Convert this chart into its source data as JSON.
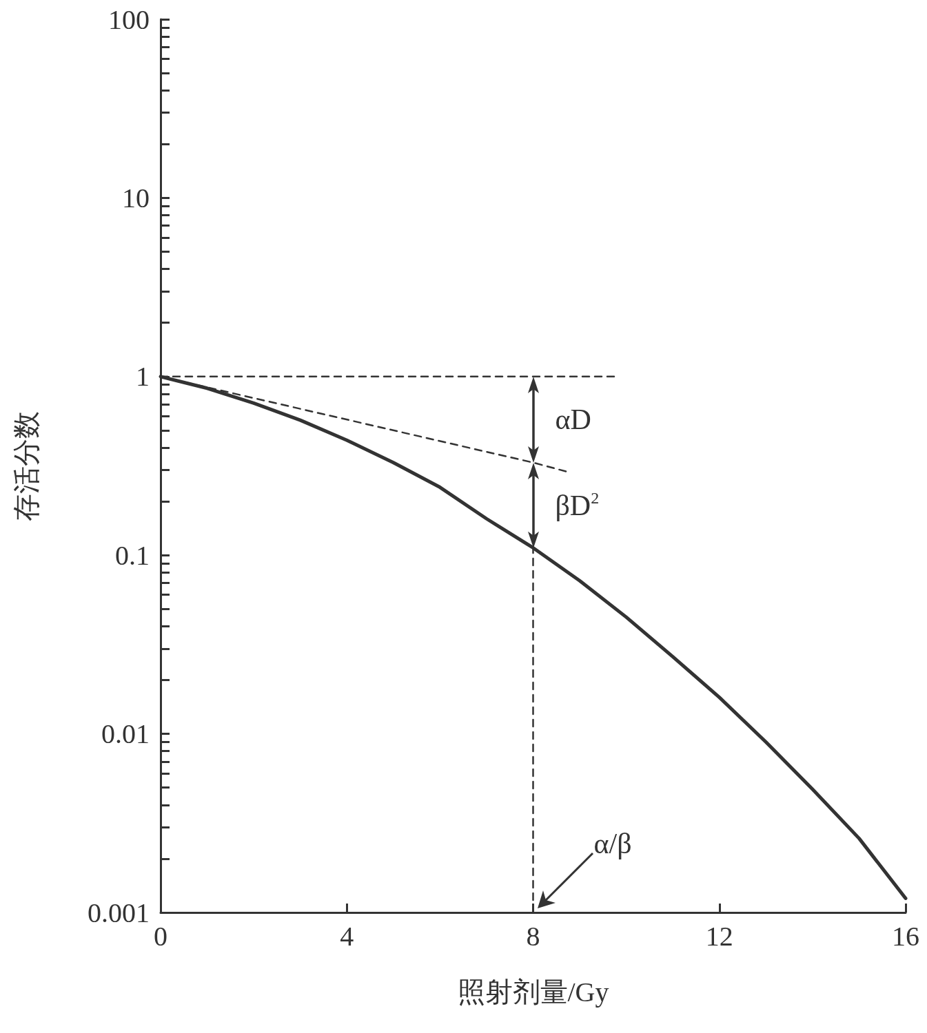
{
  "chart_data": {
    "type": "line",
    "xlabel": "照射剂量/Gy",
    "ylabel": "存活分数",
    "log": "y",
    "marker": "none",
    "xlim": [
      0,
      16
    ],
    "xticks": [
      0,
      4,
      8,
      12,
      16
    ],
    "ylim": [
      0.001,
      100
    ],
    "yticks": [
      {
        "value": 0.001,
        "label": "0.001"
      },
      {
        "value": 0.002,
        "label": null
      },
      {
        "value": 0.003,
        "label": null
      },
      {
        "value": 0.004,
        "label": null
      },
      {
        "value": 0.005,
        "label": null
      },
      {
        "value": 0.006,
        "label": null
      },
      {
        "value": 0.007,
        "label": null
      },
      {
        "value": 0.008,
        "label": null
      },
      {
        "value": 0.009,
        "label": null
      },
      {
        "value": 0.01,
        "label": "0.01"
      },
      {
        "value": 0.02,
        "label": null
      },
      {
        "value": 0.03,
        "label": null
      },
      {
        "value": 0.04,
        "label": null
      },
      {
        "value": 0.05,
        "label": null
      },
      {
        "value": 0.06,
        "label": null
      },
      {
        "value": 0.07,
        "label": null
      },
      {
        "value": 0.08,
        "label": null
      },
      {
        "value": 0.09,
        "label": null
      },
      {
        "value": 0.1,
        "label": "0.1"
      },
      {
        "value": 0.2,
        "label": null
      },
      {
        "value": 0.3,
        "label": null
      },
      {
        "value": 0.4,
        "label": null
      },
      {
        "value": 0.5,
        "label": null
      },
      {
        "value": 0.6,
        "label": null
      },
      {
        "value": 0.7,
        "label": null
      },
      {
        "value": 0.8,
        "label": null
      },
      {
        "value": 0.9,
        "label": null
      },
      1,
      {
        "value": 2,
        "label": null
      },
      {
        "value": 3,
        "label": null
      },
      {
        "value": 4,
        "label": null
      },
      {
        "value": 5,
        "label": null
      },
      {
        "value": 6,
        "label": null
      },
      {
        "value": 7,
        "label": null
      },
      {
        "value": 8,
        "label": null
      },
      {
        "value": 9,
        "label": null
      },
      10,
      {
        "value": 20,
        "label": null
      },
      {
        "value": 30,
        "label": null
      },
      {
        "value": 40,
        "label": null
      },
      {
        "value": 50,
        "label": null
      },
      {
        "value": 60,
        "label": null
      },
      {
        "value": 70,
        "label": null
      },
      {
        "value": 80,
        "label": null
      },
      {
        "value": 90,
        "label": null
      },
      100
    ],
    "series": [
      {
        "color": "#333333",
        "line_style": "solid",
        "x": [
          0,
          1,
          2,
          3,
          4,
          5,
          6,
          7,
          8,
          9,
          10,
          11,
          12,
          13,
          14,
          15,
          16
        ],
        "values": [
          1,
          0.86,
          0.71,
          0.57,
          0.44,
          0.33,
          0.24,
          0.16,
          0.11,
          0.072,
          0.045,
          0.027,
          0.016,
          0.009,
          0.0049,
          0.0026,
          0.0012
        ]
      },
      {
        "color": "#333333",
        "line_style": "dashed",
        "x": [
          0,
          8,
          9.8
        ],
        "values": [
          1,
          1,
          1
        ]
      },
      {
        "color": "#333333",
        "line_style": "dashed",
        "x": [
          0,
          8,
          8.8
        ],
        "values": [
          1,
          0.33,
          0.29
        ]
      },
      {
        "color": "#333333",
        "line_style": "dashed",
        "x": [
          8,
          8
        ],
        "values": [
          0.001,
          0.11
        ]
      }
    ],
    "annotations": [
      "αD",
      "βD$^{2}$",
      {
        "text": "α/β",
        "x": 8,
        "y": 0.001
      }
    ]
  }
}
